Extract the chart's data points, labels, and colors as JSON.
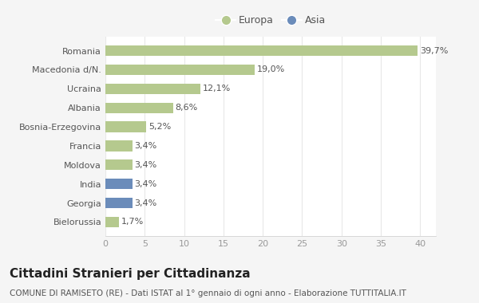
{
  "categories": [
    "Romania",
    "Macedonia d/N.",
    "Ucraina",
    "Albania",
    "Bosnia-Erzegovina",
    "Francia",
    "Moldova",
    "India",
    "Georgia",
    "Bielorussia"
  ],
  "values": [
    39.7,
    19.0,
    12.1,
    8.6,
    5.2,
    3.4,
    3.4,
    3.4,
    3.4,
    1.7
  ],
  "labels": [
    "39,7%",
    "19,0%",
    "12,1%",
    "8,6%",
    "5,2%",
    "3,4%",
    "3,4%",
    "3,4%",
    "3,4%",
    "1,7%"
  ],
  "colors": [
    "#b5c98e",
    "#b5c98e",
    "#b5c98e",
    "#b5c98e",
    "#b5c98e",
    "#b5c98e",
    "#b5c98e",
    "#6b8cba",
    "#6b8cba",
    "#b5c98e"
  ],
  "legend_labels": [
    "Europa",
    "Asia"
  ],
  "legend_colors": [
    "#b5c98e",
    "#6b8cba"
  ],
  "title": "Cittadini Stranieri per Cittadinanza",
  "subtitle": "COMUNE DI RAMISETO (RE) - Dati ISTAT al 1° gennaio di ogni anno - Elaborazione TUTTITALIA.IT",
  "xlim": [
    0,
    42
  ],
  "xticks": [
    0,
    5,
    10,
    15,
    20,
    25,
    30,
    35,
    40
  ],
  "bg_color": "#f5f5f5",
  "plot_bg_color": "#ffffff",
  "grid_color": "#e8e8e8",
  "bar_height": 0.55,
  "title_fontsize": 11,
  "subtitle_fontsize": 7.5,
  "label_fontsize": 8,
  "tick_fontsize": 8,
  "legend_fontsize": 9
}
